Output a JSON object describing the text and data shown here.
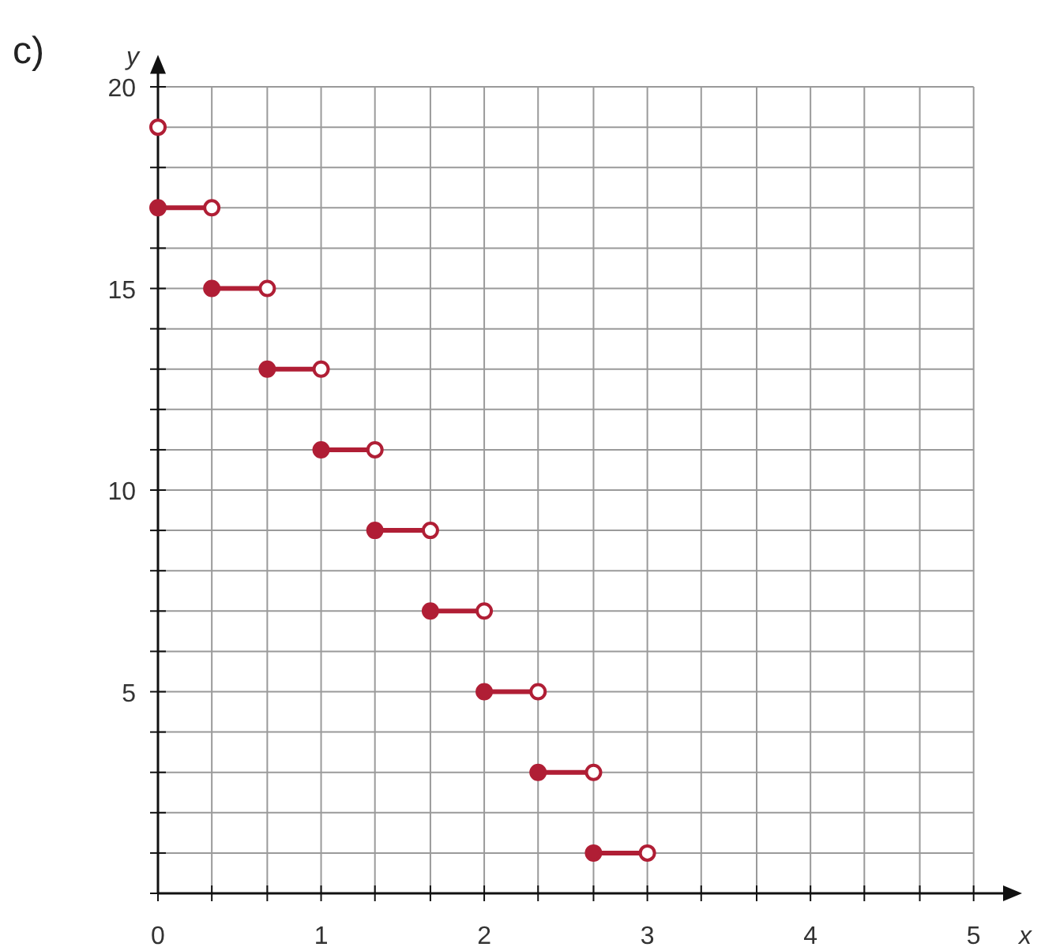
{
  "chart_data": {
    "type": "line",
    "title": "c)",
    "xlabel": "x",
    "ylabel": "y",
    "xlim": [
      0,
      5.2
    ],
    "ylim": [
      0,
      20.4
    ],
    "xticks": [
      0,
      {
        "value": 0.33,
        "label": null
      },
      {
        "value": 0.67,
        "label": null
      },
      1,
      {
        "value": 1.33,
        "label": null
      },
      {
        "value": 1.67,
        "label": null
      },
      2,
      {
        "value": 2.33,
        "label": null
      },
      {
        "value": 2.67,
        "label": null
      },
      3,
      {
        "value": 3.33,
        "label": null
      },
      {
        "value": 3.67,
        "label": null
      },
      4,
      {
        "value": 4.33,
        "label": null
      },
      {
        "value": 4.67,
        "label": null
      },
      5
    ],
    "yticks": [
      {
        "value": 0,
        "label": null
      },
      {
        "value": 1,
        "label": null
      },
      {
        "value": 2,
        "label": null
      },
      {
        "value": 3,
        "label": null
      },
      {
        "value": 4,
        "label": null
      },
      5,
      {
        "value": 6,
        "label": null
      },
      {
        "value": 7,
        "label": null
      },
      {
        "value": 8,
        "label": null
      },
      {
        "value": 9,
        "label": null
      },
      10,
      {
        "value": 11,
        "label": null
      },
      {
        "value": 12,
        "label": null
      },
      {
        "value": 13,
        "label": null
      },
      {
        "value": 14,
        "label": null
      },
      15,
      {
        "value": 16,
        "label": null
      },
      {
        "value": 17,
        "label": null
      },
      {
        "value": 18,
        "label": null
      },
      {
        "value": 19,
        "label": null
      },
      20
    ],
    "grid": true,
    "series": [
      {
        "color": "#b01e35",
        "marker": "none",
        "line_style": "solid",
        "x": [
          0,
          0.33,
          null,
          0.33,
          0.67,
          null,
          0.67,
          1,
          null,
          1,
          1.33,
          null,
          1.33,
          1.67,
          null,
          1.67,
          2,
          null,
          2,
          2.33,
          null,
          2.33,
          2.67,
          null,
          2.67,
          3
        ],
        "values": [
          17,
          17,
          null,
          15,
          15,
          null,
          13,
          13,
          null,
          11,
          11,
          null,
          9,
          9,
          null,
          7,
          7,
          null,
          5,
          5,
          null,
          3,
          3,
          null,
          1,
          1
        ]
      },
      {
        "type": "scatter",
        "color": "#b01e35",
        "marker": "circle",
        "x": [
          0,
          0.33,
          0.67,
          1,
          1.33,
          1.67,
          2,
          2.33,
          2.67
        ],
        "values": [
          17,
          15,
          13,
          11,
          9,
          7,
          5,
          3,
          1
        ]
      },
      {
        "type": "scatter",
        "color": "#b01e35",
        "marker": "circle",
        "x": [
          0,
          0.33,
          0.67,
          1,
          1.33,
          1.67,
          2,
          2.33,
          2.67,
          3
        ],
        "values": [
          19,
          17,
          15,
          13,
          11,
          9,
          7,
          5,
          3,
          1
        ]
      }
    ]
  }
}
